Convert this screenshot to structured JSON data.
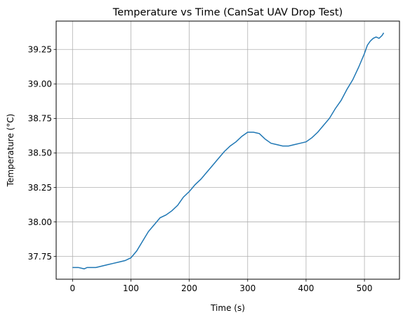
{
  "chart_data": {
    "type": "line",
    "title": "Temperature vs Time (CanSat UAV Drop Test)",
    "xlabel": "Time (s)",
    "ylabel": "Temperature (°C)",
    "xlim": [
      -28,
      560
    ],
    "ylim": [
      37.585,
      39.455
    ],
    "grid": true,
    "x_ticks": [
      0,
      100,
      200,
      300,
      400,
      500
    ],
    "x_tick_labels": [
      "0",
      "100",
      "200",
      "300",
      "400",
      "500"
    ],
    "y_ticks": [
      37.75,
      38.0,
      38.25,
      38.5,
      38.75,
      39.0,
      39.25
    ],
    "y_tick_labels": [
      "37.75",
      "38.00",
      "38.25",
      "38.50",
      "38.75",
      "39.00",
      "39.25"
    ],
    "line_color": "#1f77b4",
    "series": [
      {
        "x": [
          0,
          10,
          20,
          25,
          30,
          40,
          50,
          60,
          70,
          80,
          90,
          100,
          110,
          120,
          130,
          140,
          150,
          160,
          170,
          180,
          190,
          200,
          210,
          220,
          230,
          240,
          250,
          260,
          270,
          280,
          290,
          300,
          310,
          320,
          330,
          340,
          350,
          360,
          370,
          380,
          390,
          400,
          410,
          420,
          430,
          440,
          450,
          460,
          470,
          480,
          490,
          500,
          505,
          510,
          515,
          520,
          525,
          530,
          533
        ],
        "y": [
          37.67,
          37.67,
          37.66,
          37.67,
          37.67,
          37.67,
          37.68,
          37.69,
          37.7,
          37.71,
          37.72,
          37.74,
          37.79,
          37.86,
          37.93,
          37.98,
          38.03,
          38.05,
          38.08,
          38.12,
          38.18,
          38.22,
          38.27,
          38.31,
          38.36,
          38.41,
          38.46,
          38.51,
          38.55,
          38.58,
          38.62,
          38.65,
          38.65,
          38.64,
          38.6,
          38.57,
          38.56,
          38.55,
          38.55,
          38.56,
          38.57,
          38.58,
          38.61,
          38.65,
          38.7,
          38.75,
          38.82,
          38.88,
          38.96,
          39.03,
          39.12,
          39.22,
          39.28,
          39.31,
          39.33,
          39.34,
          39.33,
          39.35,
          39.37
        ]
      }
    ]
  }
}
